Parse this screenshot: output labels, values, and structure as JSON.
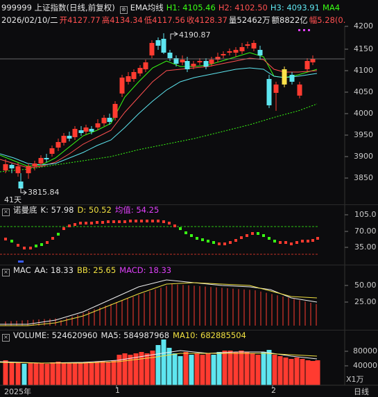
{
  "header": {
    "code_name": "999999 上证指数(日线,前复权)",
    "ema_label": "EMA均线",
    "h1": "H1: 4105.46",
    "h2": "H2: 4102.50",
    "h3": "H3: 4093.91",
    "ma4": "MA4",
    "date": "2026/02/10/二",
    "open": "开4127.77",
    "high": "高4134.34",
    "low": "低4117.56",
    "close": "收4128.37",
    "volume": "量52462万",
    "amount": "额8822亿",
    "change": "幅5.28(0."
  },
  "price_panel": {
    "y_ticks": [
      "4200",
      "4150",
      "4100",
      "4050",
      "4000",
      "3950",
      "3900",
      "3850"
    ],
    "high_label": "4190.87",
    "low_label": "3815.84",
    "days_label": "41天"
  },
  "kd_panel": {
    "name": "诺曼底",
    "k": "K: 57.98",
    "d": "D: 50.52",
    "avg": "均值: 54.25",
    "y_ticks": [
      "105.0",
      "70.00",
      "35.00"
    ]
  },
  "mac_panel": {
    "name": "MAC",
    "aa": "AA: 18.33",
    "bb": "BB: 25.65",
    "macd": "MACD: 18.33",
    "y_ticks": [
      "50.00",
      "25.00"
    ]
  },
  "volume_panel": {
    "name": "VOLUME: 524620960",
    "ma5": "MA5: 584987968",
    "ma10": "MA10: 682885504",
    "y_ticks": [
      "80000",
      "40000"
    ],
    "unit": "X1万"
  },
  "x_axis": {
    "labels": [
      "2025年",
      "1",
      "2"
    ],
    "period": "日线"
  },
  "colors": {
    "up": "#ff3b30",
    "down": "#5ee6f0",
    "yellow": "#f0e040",
    "magenta": "#e040fb",
    "green": "#39ff14"
  }
}
